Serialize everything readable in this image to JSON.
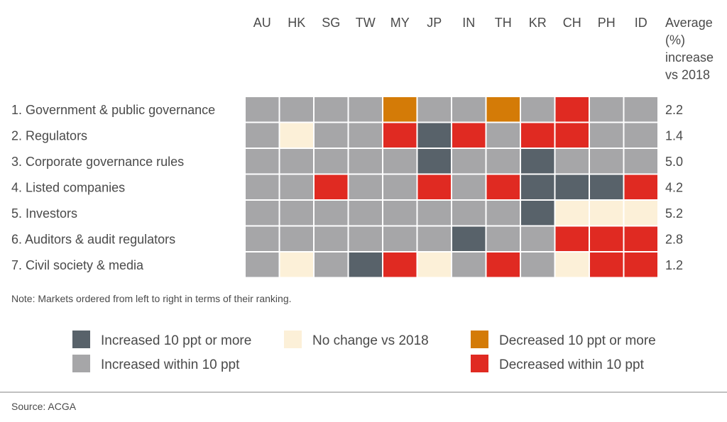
{
  "chart_data": {
    "type": "heatmap",
    "columns": [
      "AU",
      "HK",
      "SG",
      "TW",
      "MY",
      "JP",
      "IN",
      "TH",
      "KR",
      "CH",
      "PH",
      "ID"
    ],
    "avg_header": [
      "Average",
      "(%)",
      "increase",
      "vs 2018"
    ],
    "rows": [
      {
        "label": "1. Government & public governance",
        "average": "2.2",
        "cells": [
          "gray",
          "gray",
          "gray",
          "gray",
          "orange",
          "gray",
          "gray",
          "orange",
          "gray",
          "red",
          "gray",
          "gray"
        ]
      },
      {
        "label": "2. Regulators",
        "average": "1.4",
        "cells": [
          "gray",
          "cream",
          "gray",
          "gray",
          "red",
          "dark",
          "red",
          "gray",
          "red",
          "red",
          "gray",
          "gray"
        ]
      },
      {
        "label": "3. Corporate governance rules",
        "average": "5.0",
        "cells": [
          "gray",
          "gray",
          "gray",
          "gray",
          "gray",
          "dark",
          "gray",
          "gray",
          "dark",
          "gray",
          "gray",
          "gray"
        ]
      },
      {
        "label": "4. Listed companies",
        "average": "4.2",
        "cells": [
          "gray",
          "gray",
          "red",
          "gray",
          "gray",
          "red",
          "gray",
          "red",
          "dark",
          "dark",
          "dark",
          "red"
        ]
      },
      {
        "label": "5. Investors",
        "average": "5.2",
        "cells": [
          "gray",
          "gray",
          "gray",
          "gray",
          "gray",
          "gray",
          "gray",
          "gray",
          "dark",
          "cream",
          "cream",
          "cream"
        ]
      },
      {
        "label": "6. Auditors & audit regulators",
        "average": "2.8",
        "cells": [
          "gray",
          "gray",
          "gray",
          "gray",
          "gray",
          "gray",
          "dark",
          "gray",
          "gray",
          "red",
          "red",
          "red"
        ]
      },
      {
        "label": "7. Civil society & media",
        "average": "1.2",
        "cells": [
          "gray",
          "cream",
          "gray",
          "dark",
          "red",
          "cream",
          "gray",
          "red",
          "gray",
          "cream",
          "red",
          "red"
        ]
      }
    ],
    "legend": [
      {
        "key": "dark",
        "label": "Increased 10 ppt or more"
      },
      {
        "key": "gray",
        "label": "Increased within 10 ppt"
      },
      {
        "key": "cream",
        "label": "No change vs 2018"
      },
      {
        "key": "orange",
        "label": "Decreased 10 ppt or more"
      },
      {
        "key": "red",
        "label": "Decreased within 10 ppt"
      }
    ],
    "colors": {
      "dark": "#58626a",
      "gray": "#a6a6a8",
      "cream": "#fcf0d8",
      "orange": "#d47b07",
      "red": "#e02a22"
    }
  },
  "note": "Note: Markets ordered from left to right in terms of their ranking.",
  "source": "Source: ACGA"
}
